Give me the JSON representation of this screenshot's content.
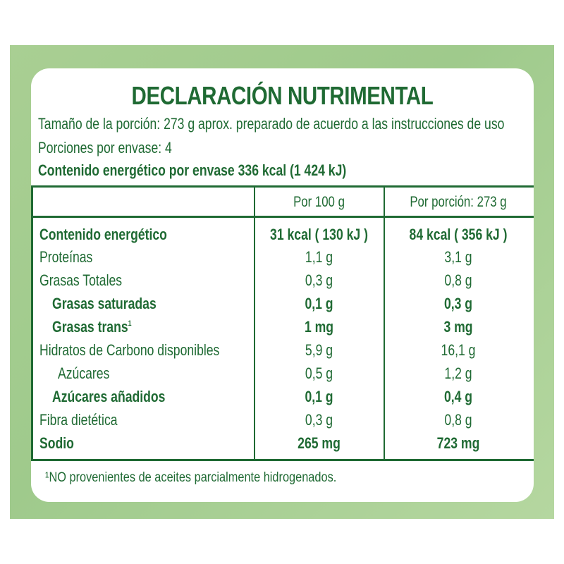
{
  "title": "DECLARACIÓN NUTRIMENTAL",
  "serving_size": "Tamaño de la porción: 273 g aprox. preparado de acuerdo a las instrucciones de uso",
  "servings_per_container": "Porciones por envase: 4",
  "energy_per_container": "Contenido energético por envase 336 kcal (1 424 kJ)",
  "columns": {
    "per100": "Por 100 g",
    "per_serving": "Por porción: 273 g"
  },
  "rows": [
    {
      "label": "Contenido energético",
      "per100": "31 kcal ( 130 kJ )",
      "per_serving": "84 kcal ( 356 kJ )"
    },
    {
      "label": "Proteínas",
      "per100": "1,1 g",
      "per_serving": "3,1 g"
    },
    {
      "label": "Grasas Totales",
      "per100": "0,3 g",
      "per_serving": "0,8 g"
    },
    {
      "label": "Grasas saturadas",
      "per100": "0,1 g",
      "per_serving": "0,3 g"
    },
    {
      "label": "Grasas trans",
      "label_sup": "1",
      "per100": "1 mg",
      "per_serving": "3 mg"
    },
    {
      "label": "Hidratos de Carbono disponibles",
      "per100": "5,9 g",
      "per_serving": "16,1 g"
    },
    {
      "label": "Azúcares",
      "per100": "0,5 g",
      "per_serving": "1,2 g"
    },
    {
      "label": "Azúcares añadidos",
      "per100": "0,1 g",
      "per_serving": "0,4 g"
    },
    {
      "label": "Fibra dietética",
      "per100": "0,3 g",
      "per_serving": "0,8 g"
    },
    {
      "label": "Sodio",
      "per100": "265 mg",
      "per_serving": "723 mg"
    }
  ],
  "footnote": "¹NO provenientes de aceites parcialmente hidrogenados.",
  "colors": {
    "text": "#1f6a33",
    "background_green": "#a9cf93",
    "panel": "#ffffff"
  }
}
